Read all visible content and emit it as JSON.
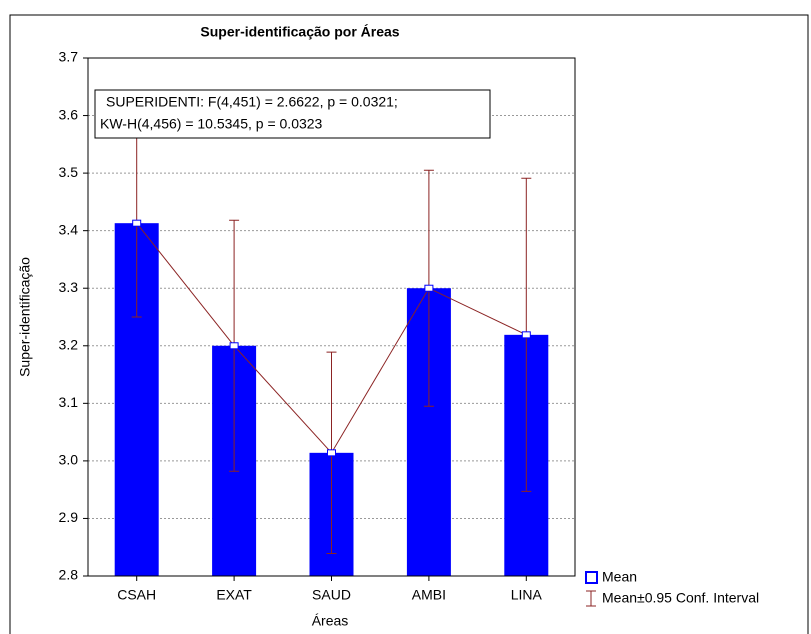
{
  "chart_data": {
    "type": "bar",
    "title": "Super-identificação por Áreas",
    "x_label": "Áreas",
    "y_label": "Super-identificação",
    "annotation": [
      "SUPERIDENTI:   F(4,451) = 2.6622, p = 0.0321;",
      "KW-H(4,456) = 10.5345, p = 0.0323"
    ],
    "categories": [
      "CSAH",
      "EXAT",
      "SAUD",
      "AMBI",
      "LINA"
    ],
    "series": [
      {
        "name": "Mean",
        "color": "#0000ff",
        "values": [
          3.413,
          3.2,
          3.014,
          3.3,
          3.219
        ]
      }
    ],
    "errors": {
      "name": "Mean±0.95 Conf. Interval",
      "color": "#8b2323",
      "values": [
        0.163,
        0.218,
        0.175,
        0.205,
        0.272
      ]
    },
    "ylim": [
      2.8,
      3.7
    ],
    "yticks": [
      {
        "value": 2.8,
        "label": "2.8"
      },
      {
        "value": 2.9,
        "label": "2.9"
      },
      {
        "value": 3.0,
        "label": "3.0"
      },
      {
        "value": 3.1,
        "label": "3.1"
      },
      {
        "value": 3.2,
        "label": "3.2"
      },
      {
        "value": 3.3,
        "label": "3.3"
      },
      {
        "value": 3.4,
        "label": "3.4"
      },
      {
        "value": 3.5,
        "label": "3.5"
      },
      {
        "value": 3.6,
        "label": "3.6"
      },
      {
        "value": 3.7,
        "label": "3.7"
      }
    ],
    "grid": true
  }
}
